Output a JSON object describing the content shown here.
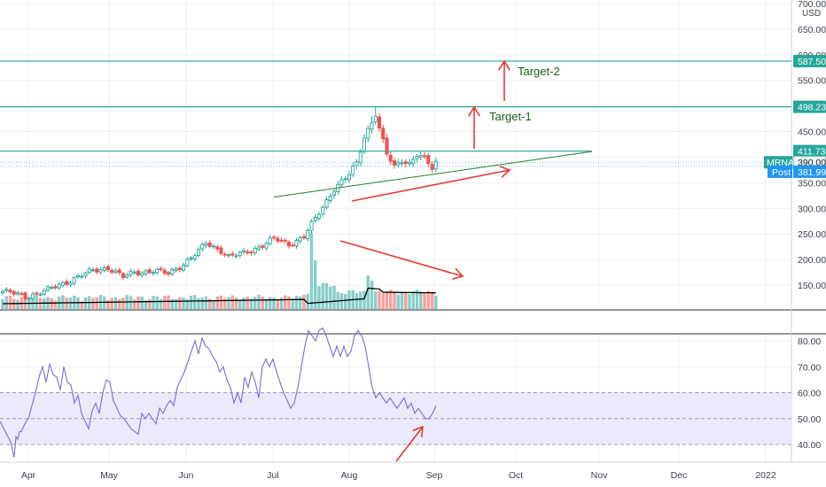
{
  "chart_data": [
    {
      "type": "candlestick",
      "name": "price-panel",
      "ylim": [
        100,
        700
      ],
      "y_ticks": [
        700,
        650,
        600,
        550,
        500,
        450,
        400,
        350,
        300,
        250,
        200,
        150
      ],
      "y_tick_labels": [
        "700.00",
        "650.00",
        "600.00",
        "550.00",
        "500.00",
        "450.00",
        "400.00",
        "350.00",
        "300.00",
        "250.00",
        "200.00",
        "150.00"
      ],
      "currency_label": "USD",
      "x_labels": [
        "Apr",
        "May",
        "Jun",
        "Jul",
        "Aug",
        "Sep",
        "Oct",
        "Nov",
        "Dec",
        "2022"
      ],
      "horizontal_levels": [
        {
          "label": "587.50",
          "value": 587.5
        },
        {
          "label": "498.23",
          "value": 498.23
        },
        {
          "label": "411.73",
          "value": 411.73
        }
      ],
      "price_badges": [
        {
          "ticker": "MRNA",
          "label": "390.00",
          "value": 390.0
        },
        {
          "ticker": "Post",
          "label": "381.99",
          "value": 381.99
        }
      ],
      "annotations": [
        {
          "text": "Target-1"
        },
        {
          "text": "Target-2"
        }
      ],
      "colors": {
        "up": "#26a69a",
        "down": "#ef5350",
        "level_line": "#26a69a",
        "trendline": "#3c8c3c",
        "arrow": "#e53935",
        "volume_ma": "#000000"
      }
    },
    {
      "type": "line",
      "name": "rsi-panel",
      "ylim": [
        30,
        85
      ],
      "y_ticks": [
        80,
        70,
        60,
        50,
        40
      ],
      "y_tick_labels": [
        "80.00",
        "70.00",
        "60.00",
        "50.00",
        "40.00"
      ],
      "band": [
        40,
        60
      ],
      "midline": 50,
      "colors": {
        "line": "#7e6bd0",
        "band": "#ece9fb"
      }
    }
  ]
}
